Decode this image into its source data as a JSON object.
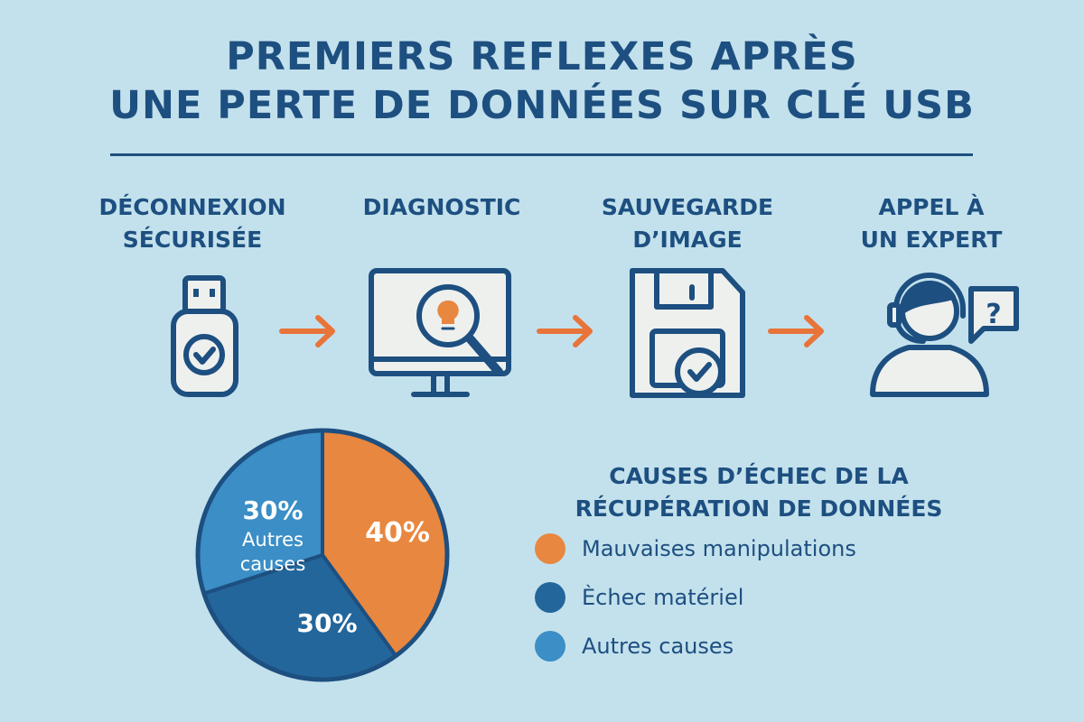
{
  "title": {
    "line1": "PREMIERS REFLEXES APRÈS",
    "line2": "UNE PERTE DE DONNÉES SUR CLÉ USB"
  },
  "steps": [
    {
      "line1": "DÉCONNEXION",
      "line2": "SÉCURISÉE",
      "icon": "usb-key-check-icon"
    },
    {
      "line1": "DIAGNOSTIC",
      "line2": "",
      "icon": "monitor-magnifier-bulb-icon"
    },
    {
      "line1": "SAUVEGARDE",
      "line2": "D’IMAGE",
      "icon": "floppy-disk-check-icon"
    },
    {
      "line1": "APPEL À",
      "line2": "UN EXPERT",
      "icon": "support-agent-question-icon"
    }
  ],
  "colors": {
    "background": "#c3e1ec",
    "navy": "#1d4f80",
    "orange": "#e8873f",
    "dark_blue": "#23669b",
    "light_blue": "#3b8ec6"
  },
  "chart_data": {
    "type": "pie",
    "title": "CAUSES D’ÉCHEC DE LA RÉCUPÉRATION DE DONNÉES",
    "slices": [
      {
        "name": "Mauvaises manipulations",
        "value": 40,
        "label": "40%",
        "color": "#e8873f"
      },
      {
        "name": "Èchec matériel",
        "value": 30,
        "label": "30%",
        "color": "#23669b"
      },
      {
        "name": "Autres causes",
        "value": 30,
        "label": "30%",
        "sublabel1": "Autres",
        "sublabel2": "causes",
        "color": "#3b8ec6"
      }
    ]
  },
  "legend": {
    "title_line1": "CAUSES D’ÉCHEC DE LA",
    "title_line2": "RÉCUPÉRATION DE DONNÉES",
    "items": [
      "Mauvaises manipulations",
      "Èchec matériel",
      "Autres causes"
    ]
  }
}
